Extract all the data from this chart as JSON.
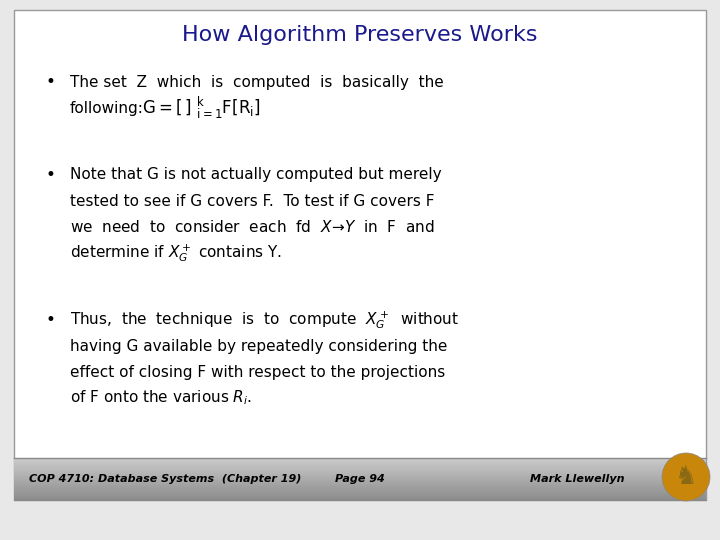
{
  "title": "How Algorithm Preserves Works",
  "title_color": "#1a1a8c",
  "title_fontsize": 16,
  "bg_color": "#e8e8e8",
  "slide_bg": "#ffffff",
  "footer_bg_top": "#aaaaaa",
  "footer_bg_mid": "#c8c8c8",
  "footer_bg_bot": "#d8d8d8",
  "footer_text_color": "#000000",
  "footer_left": "COP 4710: Database Systems  (Chapter 19)",
  "footer_center": "Page 94",
  "footer_right": "Mark Llewellyn",
  "footer_fontsize": 8,
  "content_fontsize": 11,
  "slide_border_color": "#999999",
  "bullet1_line1": "The set  Z  which  is  computed  is  basically  the",
  "bullet1_line2_pre": "following:",
  "bullet2_lines": [
    "Note that G is not actually computed but merely",
    "tested to see if G covers F.  To test if G covers F",
    "we  need  to  consider  each  fd  X\\u2192Y  in  F  and",
    "determine if X_G^+ contains Y."
  ],
  "bullet3_lines": [
    "Thus,  the  technique  is  to  compute  X_G^+  without",
    "having G available by repeatedly considering the",
    "effect of closing F with respect to the projections",
    "of F onto the various R_i."
  ]
}
